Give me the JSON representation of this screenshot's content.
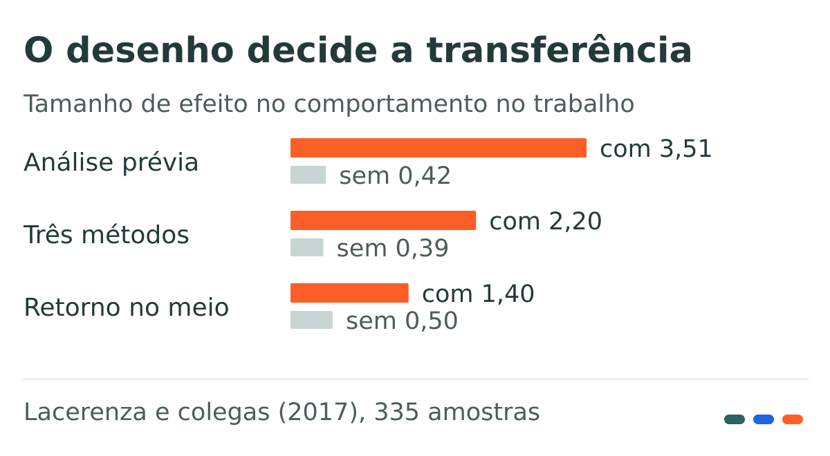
{
  "header": {
    "title": "O desenho decide a transferência",
    "subtitle": "Tamanho de efeito no comportamento no trabalho"
  },
  "chart_data": {
    "type": "bar",
    "orientation": "horizontal",
    "categories": [
      "Análise prévia",
      "Três métodos",
      "Retorno no meio"
    ],
    "series": [
      {
        "name": "com",
        "values": [
          3.51,
          2.2,
          1.4
        ],
        "value_labels": [
          "com 3,51",
          "com 2,20",
          "com 1,40"
        ],
        "color": "#fb5e27"
      },
      {
        "name": "sem",
        "values": [
          0.42,
          0.39,
          0.5
        ],
        "value_labels": [
          "sem 0,42",
          "sem 0,39",
          "sem 0,50"
        ],
        "color": "#c8d5d5"
      }
    ],
    "xlim": [
      0,
      3.51
    ],
    "grid": false,
    "legend": "none"
  },
  "footer": {
    "source": "Lacerenza e colegas (2017), 335 amostras",
    "brand_colors": [
      "#2e6161",
      "#1f64e0",
      "#fb5e27"
    ]
  }
}
